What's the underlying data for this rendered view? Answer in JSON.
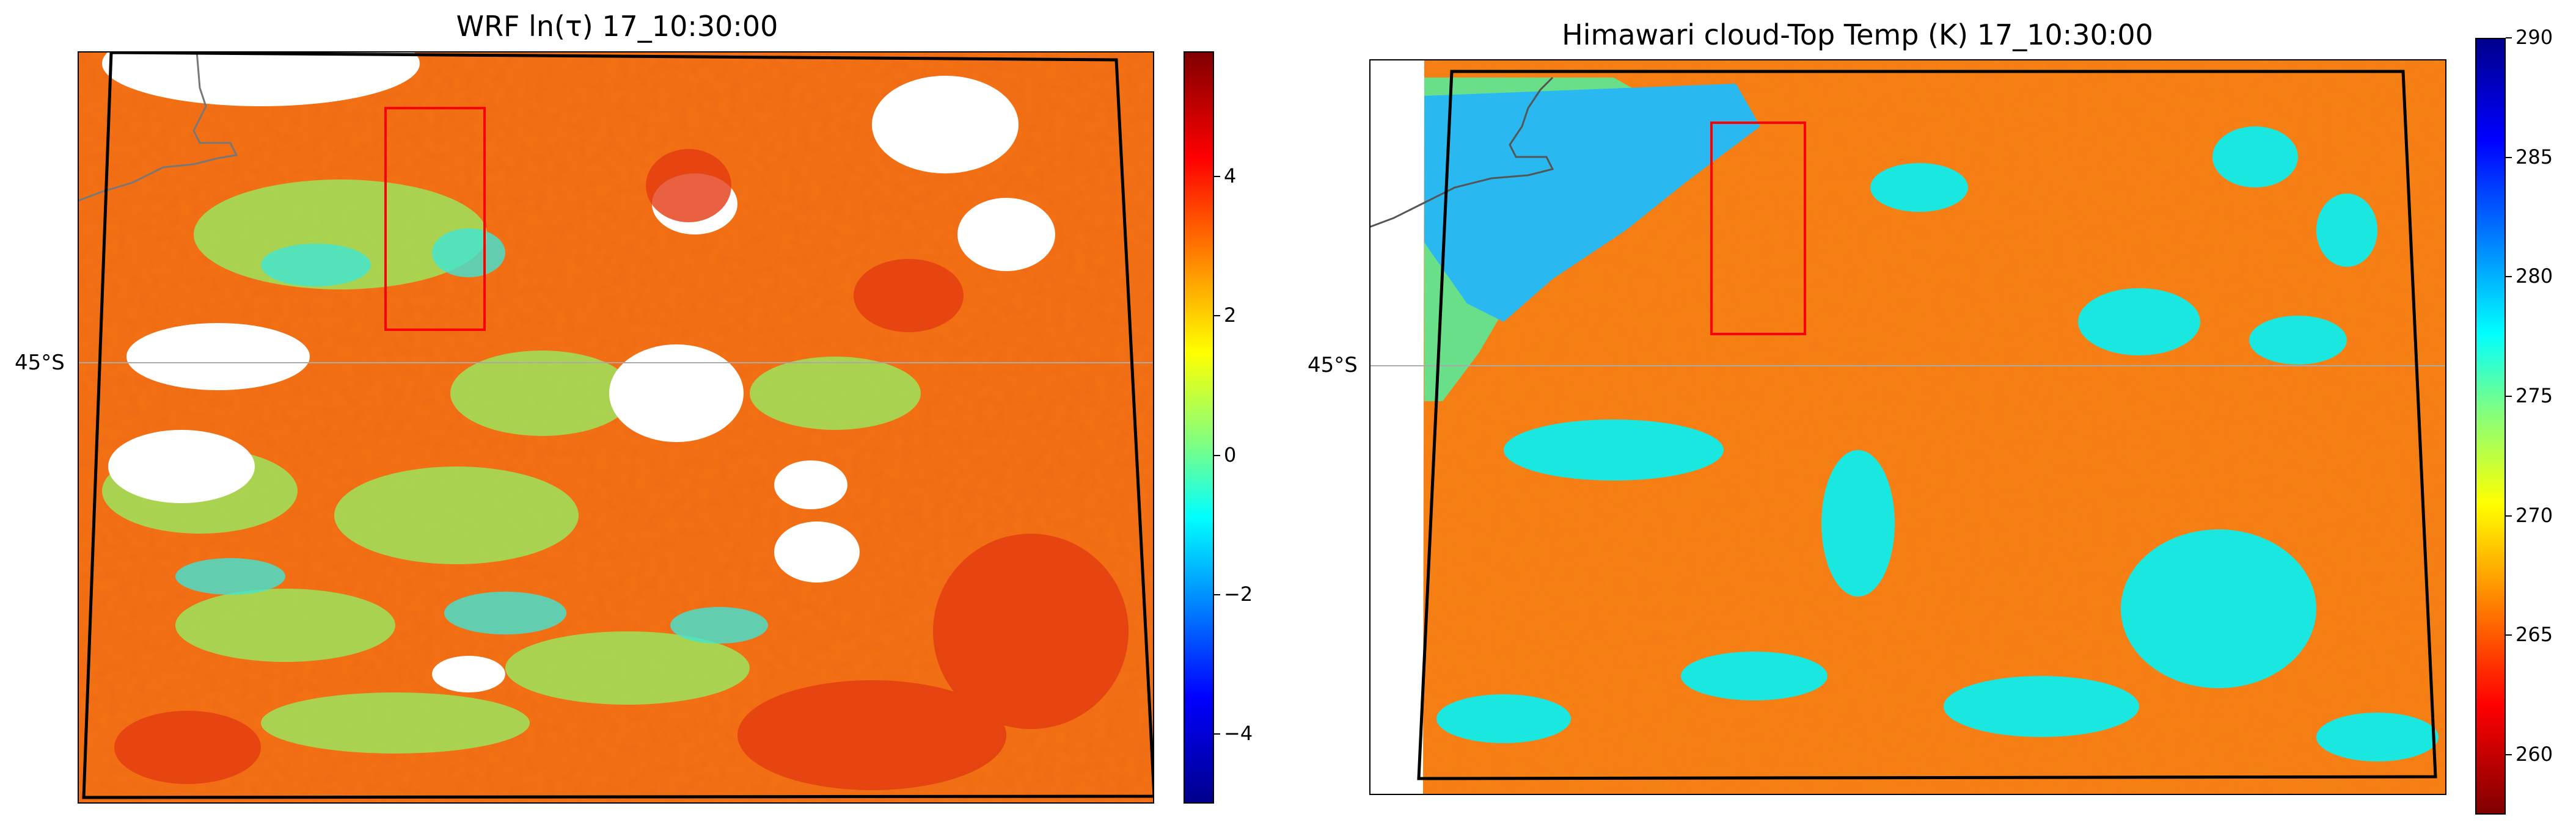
{
  "panels": [
    {
      "id": "wrf",
      "title": "WRF ln(τ) 17_10:30:00",
      "lat_label": "45°S",
      "colorbar": {
        "colormap": "jet",
        "reversed": false,
        "range": [
          -5,
          5.8
        ],
        "ticks": [
          4,
          2,
          0,
          -2,
          -4
        ],
        "tick_labels": [
          "4",
          "2",
          "0",
          "−2",
          "−4"
        ]
      }
    },
    {
      "id": "himawari",
      "title": "Himawari cloud-Top Temp (K) 17_10:30:00",
      "lat_label": "45°S",
      "colorbar": {
        "colormap": "jet",
        "reversed": true,
        "range": [
          257.5,
          290
        ],
        "ticks": [
          290,
          285,
          280,
          275,
          270,
          265,
          260
        ],
        "tick_labels": [
          "290",
          "285",
          "280",
          "275",
          "270",
          "265",
          "260"
        ]
      }
    }
  ],
  "colors": {
    "box_outline": "#ff0000",
    "domain_outline": "#000000",
    "coastline": "#777777",
    "gridline": "#aaaaaa"
  }
}
